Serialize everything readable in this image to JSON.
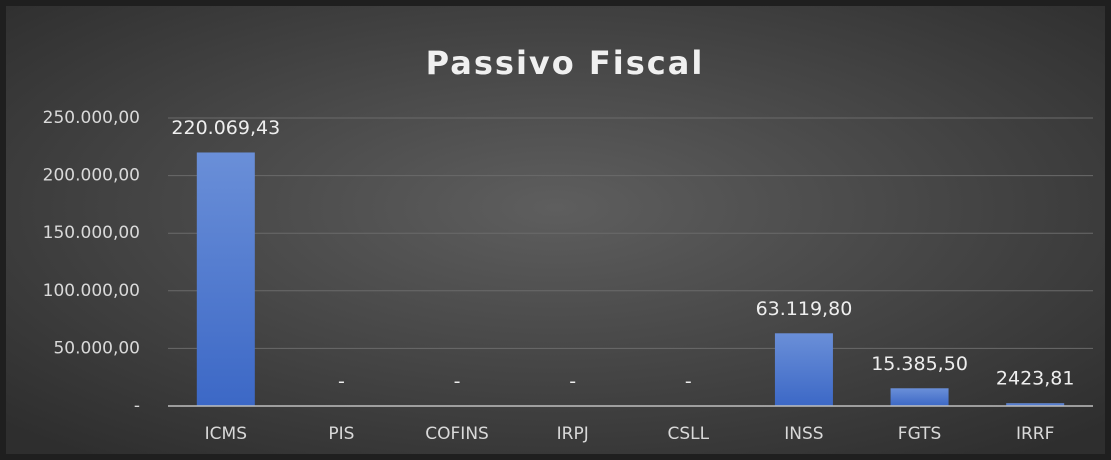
{
  "chart_data": {
    "type": "bar",
    "title": "Passivo Fiscal",
    "categories": [
      "ICMS",
      "PIS",
      "COFINS",
      "IRPJ",
      "CSLL",
      "INSS",
      "FGTS",
      "IRRF"
    ],
    "values": [
      220069.43,
      0,
      0,
      0,
      0,
      63119.8,
      15385.5,
      2423.81
    ],
    "value_labels": [
      "220.069,43",
      "-",
      "-",
      "-",
      "-",
      "63.119,80",
      "15.385,50",
      "2423,81"
    ],
    "color": "#4472c4",
    "ylim": [
      0,
      250000
    ],
    "yticks": [
      {
        "value": 0,
        "label": "-"
      },
      {
        "value": 50000,
        "label": "50.000,00"
      },
      {
        "value": 100000,
        "label": "100.000,00"
      },
      {
        "value": 150000,
        "label": "150.000,00"
      },
      {
        "value": 200000,
        "label": "200.000,00"
      },
      {
        "value": 250000,
        "label": "250.000,00"
      }
    ],
    "grid": true
  }
}
